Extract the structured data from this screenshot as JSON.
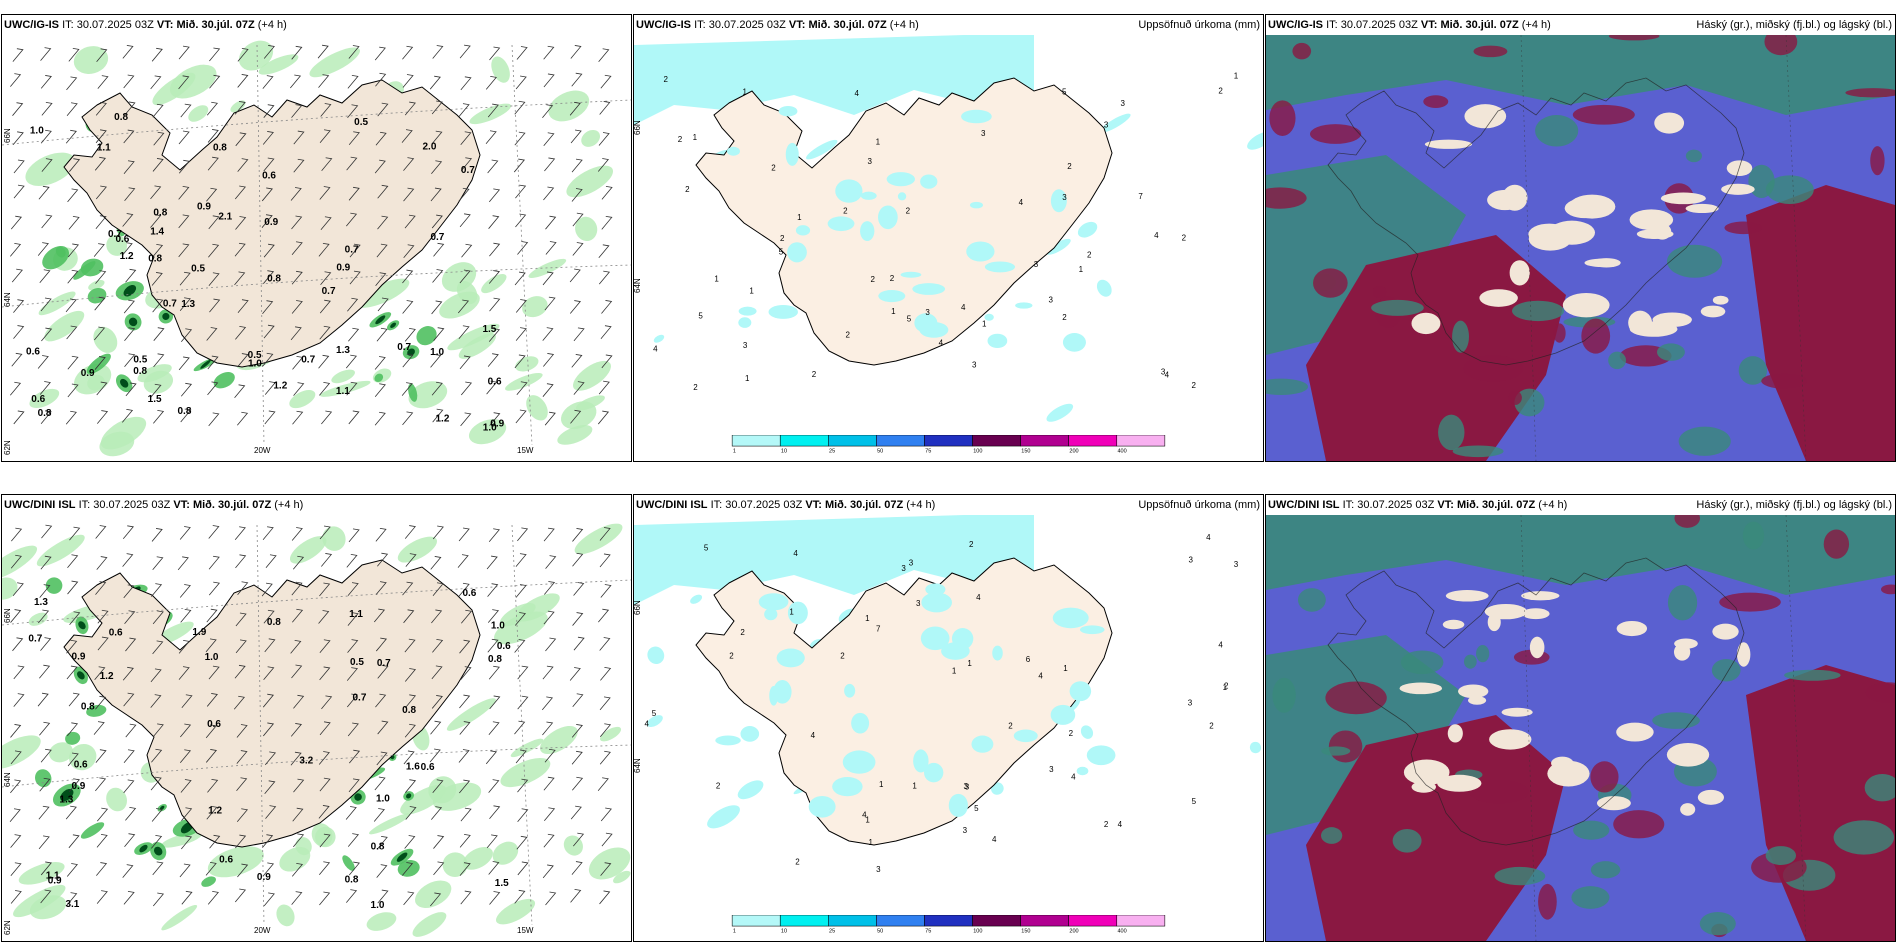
{
  "rows": [
    {
      "header": {
        "model": "UWC/IG-IS",
        "it_label": "IT:",
        "it_value": "30.07.2025 03Z",
        "vt_label": "VT:",
        "vt_value": "Mið. 30.júl. 07Z",
        "lead": "(+4 h)"
      },
      "wind_values": [
        "0.5",
        "0.5",
        "0.8",
        "0.9",
        "0.9",
        "0.7",
        "0.7",
        "0.9",
        "1.1",
        "1.5",
        "0.7",
        "0.5",
        "0.8",
        "0.7",
        "2.1",
        "0.7",
        "0.9",
        "1.2",
        "0.7",
        "0.8",
        "0.9",
        "1.0",
        "1.5",
        "0.8",
        "1.3",
        "2.0",
        "0.8",
        "1.2",
        "0.6",
        "0.5",
        "0.8",
        "1.0",
        "1.0",
        "0.7",
        "1.4",
        "0.6",
        "0.6",
        "0.6",
        "1.2",
        "0.8",
        "0.6",
        "1.1",
        "1.0",
        "1.3",
        "0.7",
        "0.8"
      ],
      "precip_values": [
        "4",
        "7",
        "5",
        "1",
        "3",
        "2",
        "4",
        "2",
        "5",
        "2",
        "4",
        "1",
        "2",
        "3",
        "2",
        "2",
        "4",
        "2",
        "3",
        "2",
        "3",
        "1",
        "2",
        "3",
        "1",
        "3",
        "5",
        "1",
        "4",
        "1",
        "4",
        "3",
        "3",
        "2",
        "2",
        "2",
        "1",
        "3",
        "5",
        "2",
        "4",
        "1",
        "3",
        "2",
        "1",
        "2",
        "1",
        "2",
        "2",
        "3",
        "1",
        "2"
      ]
    },
    {
      "header": {
        "model": "UWC/DINI ISL",
        "it_label": "IT:",
        "it_value": "30.07.2025 03Z",
        "vt_label": "VT:",
        "vt_value": "Mið. 30.júl. 07Z",
        "lead": "(+4 h)"
      },
      "wind_values": [
        "1.9",
        "1.3",
        "0.6",
        "0.8",
        "0.5",
        "3.1",
        "0.8",
        "0.9",
        "1.0",
        "1.1",
        "0.7",
        "1.2",
        "0.9",
        "1.0",
        "1.3",
        "1.0",
        "0.6",
        "1.5",
        "3.2",
        "1.6",
        "0.9",
        "1.2",
        "0.9",
        "0.8",
        "0.7",
        "0.6",
        "0.6",
        "0.6",
        "0.8",
        "0.6",
        "0.8",
        "0.7",
        "0.8",
        "1.0",
        "1.1",
        "0.6"
      ],
      "precip_values": [
        "3",
        "4",
        "5",
        "4",
        "1",
        "2",
        "1",
        "5",
        "7",
        "4",
        "5",
        "3",
        "1",
        "4",
        "2",
        "1",
        "3",
        "2",
        "4",
        "4",
        "3",
        "1",
        "1",
        "3",
        "5",
        "3",
        "6",
        "2",
        "4",
        "2",
        "3",
        "4",
        "2",
        "3",
        "4",
        "1",
        "2",
        "3",
        "4",
        "2",
        "1",
        "2",
        "2",
        "3",
        "1",
        "4",
        "2",
        "3",
        "1"
      ]
    }
  ],
  "precip_title": "Uppsöfnuð úrkoma (mm)",
  "cloud_title": "Háský (gr.), miðský (fj.bl.) og lágský (bl.)",
  "axis_labels": {
    "lat_top": "66N",
    "lat_mid": "64N",
    "lat_bot": "62N",
    "lon_left": "20W",
    "lon_right": "15W",
    "lat_top_mid": "66N",
    "lat_mid_mid": "64N"
  },
  "colorbar": {
    "labels": [
      "1",
      "10",
      "25",
      "50",
      "75",
      "100",
      "150",
      "200",
      "400"
    ],
    "colors": [
      "#b4f8f8",
      "#00f0f0",
      "#00c0e8",
      "#3080f0",
      "#2030c0",
      "#680050",
      "#b00090",
      "#f000b8",
      "#f8b0f0"
    ]
  },
  "colors": {
    "land": "#f2e6d8",
    "precip_land": "#fbefe3",
    "precip_cyan": "#b0f8f8",
    "green_light": "#b8ecb8",
    "green_mid": "#50c060",
    "green_dark": "#004d1a",
    "cloud_blue": "#5a60d0",
    "cloud_maroon": "#8a1842",
    "cloud_teal": "#3a8a7a",
    "cloud_land": "#f2e6d8"
  }
}
